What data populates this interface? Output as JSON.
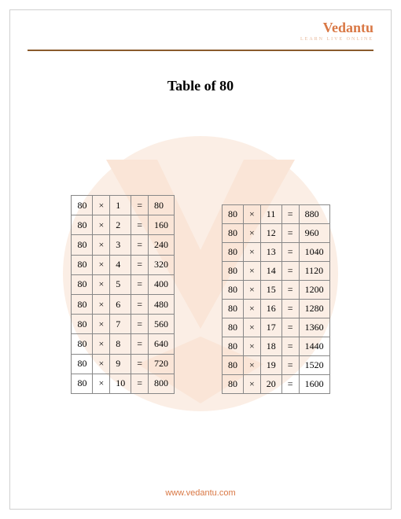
{
  "brand": {
    "name": "Vedantu",
    "tagline": "LEARN LIVE ONLINE",
    "color": "#d97845"
  },
  "title": "Table of 80",
  "hr_color": "#8a5a2c",
  "watermark": {
    "circle_color": "#f9e4d4",
    "v_color": "#f7d4bd"
  },
  "footer_url": "www.vedantu.com",
  "table_border_color": "#888888",
  "cell_fontsize": 12,
  "left_table": {
    "rows": [
      [
        "80",
        "×",
        "1",
        "=",
        "80"
      ],
      [
        "80",
        "×",
        "2",
        "=",
        "160"
      ],
      [
        "80",
        "×",
        "3",
        "=",
        "240"
      ],
      [
        "80",
        "×",
        "4",
        "=",
        "320"
      ],
      [
        "80",
        "×",
        "5",
        "=",
        "400"
      ],
      [
        "80",
        "×",
        "6",
        "=",
        "480"
      ],
      [
        "80",
        "×",
        "7",
        "=",
        "560"
      ],
      [
        "80",
        "×",
        "8",
        "=",
        "640"
      ],
      [
        "80",
        "×",
        "9",
        "=",
        "720"
      ],
      [
        "80",
        "×",
        "10",
        "=",
        "800"
      ]
    ]
  },
  "right_table": {
    "rows": [
      [
        "80",
        "×",
        "11",
        "=",
        "880"
      ],
      [
        "80",
        "×",
        "12",
        "=",
        "960"
      ],
      [
        "80",
        "×",
        "13",
        "=",
        "1040"
      ],
      [
        "80",
        "×",
        "14",
        "=",
        "1120"
      ],
      [
        "80",
        "×",
        "15",
        "=",
        "1200"
      ],
      [
        "80",
        "×",
        "16",
        "=",
        "1280"
      ],
      [
        "80",
        "×",
        "17",
        "=",
        "1360"
      ],
      [
        "80",
        "×",
        "18",
        "=",
        "1440"
      ],
      [
        "80",
        "×",
        "19",
        "=",
        "1520"
      ],
      [
        "80",
        "×",
        "20",
        "=",
        "1600"
      ]
    ]
  }
}
